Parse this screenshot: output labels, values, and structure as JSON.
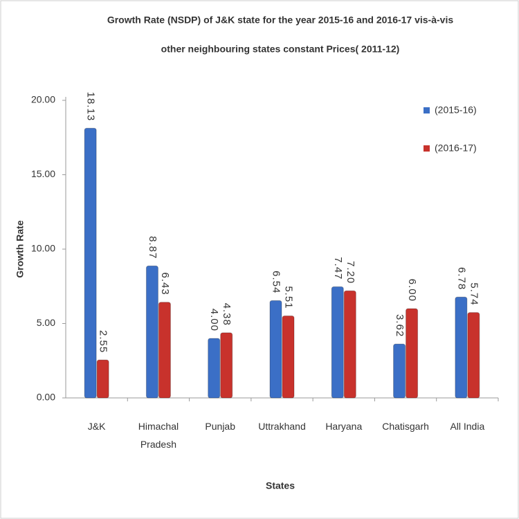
{
  "chart_data": {
    "type": "bar",
    "title": [
      "Growth Rate (NSDP) of J&K  state for the year 2015-16 and 2016-17 vis-à-vis",
      "other neighbouring states constant Prices( 2011-12)"
    ],
    "y_label": "Growth Rate",
    "x_label": "States",
    "categories": [
      "J&K",
      "Himachal Pradesh",
      "Punjab",
      "Uttrakhand",
      "Haryana",
      "Chatisgarh",
      "All India"
    ],
    "series": [
      {
        "name": "(2015-16)",
        "color": "#3b6fc6",
        "values": [
          18.13,
          8.87,
          4.0,
          6.54,
          7.47,
          3.62,
          6.78
        ],
        "value_labels": [
          "18.13",
          "8.87",
          "4.00",
          "6.54",
          "7.47",
          "3.62",
          "6.78"
        ]
      },
      {
        "name": "(2016-17)",
        "color": "#c8322c",
        "values": [
          2.55,
          6.43,
          4.38,
          5.51,
          7.2,
          6.0,
          5.74
        ],
        "value_labels": [
          "2.55",
          "6.43",
          "4.38",
          "5.51",
          "7.20",
          "6.00",
          "5.74"
        ]
      }
    ],
    "ylim": [
      0,
      20
    ],
    "yticks": [
      {
        "value": 0,
        "label": "0.00"
      },
      {
        "value": 5,
        "label": "5.00"
      },
      {
        "value": 10,
        "label": "10.00"
      },
      {
        "value": 15,
        "label": "15.00"
      },
      {
        "value": 20,
        "label": "20.00"
      }
    ],
    "legend": "top-right"
  }
}
